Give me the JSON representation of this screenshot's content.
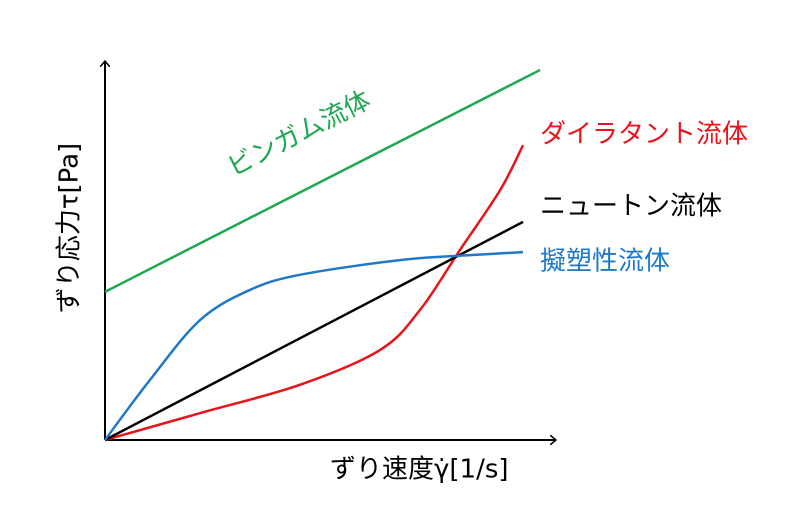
{
  "chart_data": {
    "type": "line",
    "x_label": "ずり速度γ̇[1/s]",
    "y_label": "ずり応力τ[Pa]",
    "xlim": [
      0,
      100
    ],
    "ylim": [
      0,
      100
    ],
    "series": [
      {
        "name": "ビンガム流体",
        "color": "#1fa851",
        "x": [
          0,
          96.7
        ],
        "values": [
          39.2,
          97.9
        ]
      },
      {
        "name": "ダイラタント流体",
        "color": "#e8141c",
        "x": [
          0,
          21.1,
          43.3,
          61.1,
          70,
          78.9,
          87.8,
          92.9
        ],
        "values": [
          0,
          7.1,
          14.6,
          23.8,
          34.4,
          50.3,
          66.1,
          78.0
        ]
      },
      {
        "name": "ニュートン流体",
        "color": "#000000",
        "x": [
          0,
          92.9
        ],
        "values": [
          0,
          57.7
        ]
      },
      {
        "name": "擬塑性流体",
        "color": "#2079c7",
        "x": [
          0,
          10,
          21.1,
          32.2,
          43.3,
          65.6,
          81.1,
          92.9
        ],
        "values": [
          0,
          15.9,
          31.7,
          39.7,
          43.7,
          47.6,
          48.9,
          49.7
        ]
      }
    ]
  }
}
